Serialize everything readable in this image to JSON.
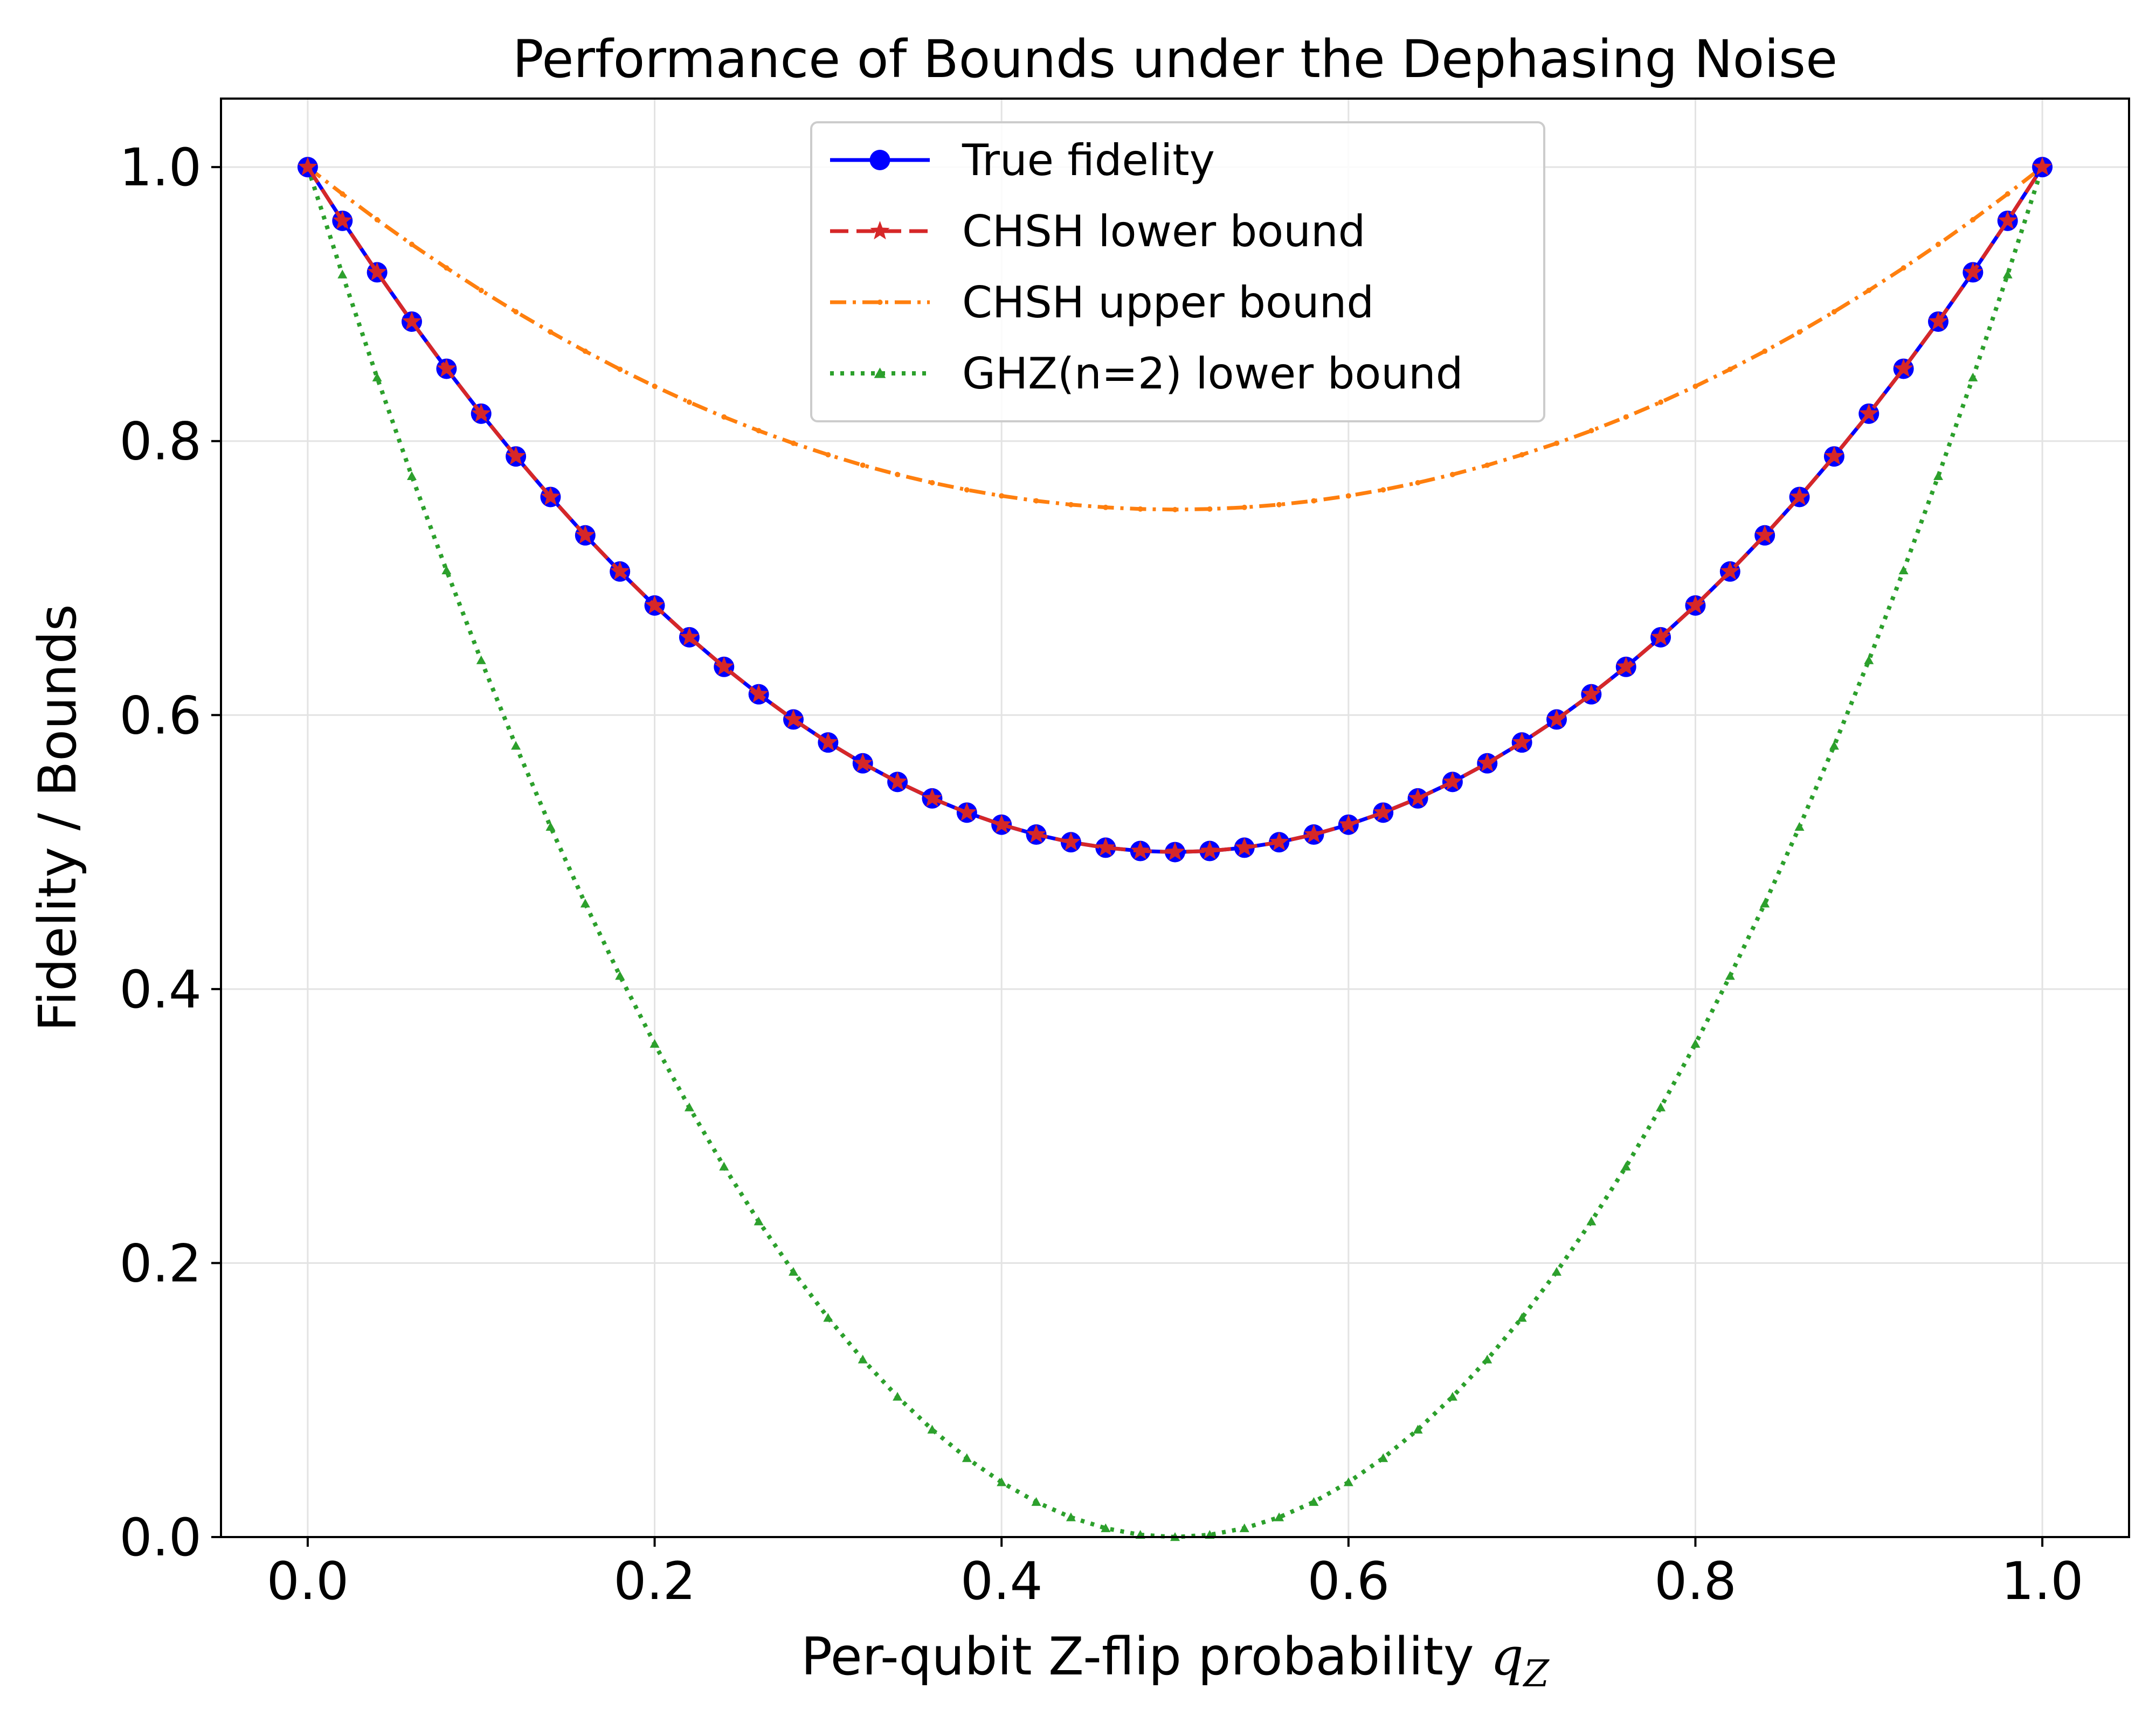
{
  "chart_data": {
    "type": "line",
    "title": "Performance of Bounds under the Dephasing Noise",
    "xlabel": "Per-qubit Z-flip probability ",
    "xlabel_symbol": "q",
    "xlabel_subscript": "Z",
    "ylabel": "Fidelity / Bounds",
    "xlim": [
      -0.05,
      1.05
    ],
    "ylim": [
      0.0,
      1.05
    ],
    "x_ticks": [
      "0.0",
      "0.2",
      "0.4",
      "0.6",
      "0.8",
      "1.0"
    ],
    "y_ticks": [
      "0.0",
      "0.2",
      "0.4",
      "0.6",
      "0.8",
      "1.0"
    ],
    "grid": true,
    "legend_position": "top-center",
    "x": [
      0.0,
      0.02,
      0.04,
      0.06,
      0.08,
      0.1,
      0.12,
      0.14,
      0.16,
      0.18,
      0.2,
      0.22,
      0.24,
      0.26,
      0.28,
      0.3,
      0.32,
      0.34,
      0.36,
      0.38,
      0.4,
      0.42,
      0.44,
      0.46,
      0.48,
      0.5,
      0.52,
      0.54,
      0.56,
      0.58,
      0.6,
      0.62,
      0.64,
      0.66,
      0.68,
      0.7,
      0.72,
      0.74,
      0.76,
      0.78,
      0.8,
      0.82,
      0.84,
      0.86,
      0.88,
      0.9,
      0.92,
      0.94,
      0.96,
      0.98,
      1.0
    ],
    "series": [
      {
        "name": "True fidelity",
        "color": "#0000ff",
        "line": "solid",
        "marker": "circle",
        "values": [
          1.0,
          0.9608,
          0.9232,
          0.8872,
          0.8528,
          0.82,
          0.7888,
          0.7592,
          0.7312,
          0.7048,
          0.68,
          0.6568,
          0.6352,
          0.6152,
          0.5968,
          0.58,
          0.5648,
          0.5512,
          0.5392,
          0.5288,
          0.52,
          0.5128,
          0.5072,
          0.5032,
          0.5008,
          0.5,
          0.5008,
          0.5032,
          0.5072,
          0.5128,
          0.52,
          0.5288,
          0.5392,
          0.5512,
          0.5648,
          0.58,
          0.5968,
          0.6152,
          0.6352,
          0.6568,
          0.68,
          0.7048,
          0.7312,
          0.7592,
          0.7888,
          0.82,
          0.8528,
          0.8872,
          0.9232,
          0.9608,
          1.0
        ]
      },
      {
        "name": "CHSH lower bound",
        "color": "#d62728",
        "line": "dashed",
        "marker": "star",
        "values": [
          1.0,
          0.9608,
          0.9232,
          0.8872,
          0.8528,
          0.82,
          0.7888,
          0.7592,
          0.7312,
          0.7048,
          0.68,
          0.6568,
          0.6352,
          0.6152,
          0.5968,
          0.58,
          0.5648,
          0.5512,
          0.5392,
          0.5288,
          0.52,
          0.5128,
          0.5072,
          0.5032,
          0.5008,
          0.5,
          0.5008,
          0.5032,
          0.5072,
          0.5128,
          0.52,
          0.5288,
          0.5392,
          0.5512,
          0.5648,
          0.58,
          0.5968,
          0.6152,
          0.6352,
          0.6568,
          0.68,
          0.7048,
          0.7312,
          0.7592,
          0.7888,
          0.82,
          0.8528,
          0.8872,
          0.9232,
          0.9608,
          1.0
        ]
      },
      {
        "name": "CHSH upper bound",
        "color": "#ff7f0e",
        "line": "dashdot",
        "marker": "point",
        "values": [
          1.0,
          0.9804,
          0.9616,
          0.9436,
          0.9264,
          0.91,
          0.8944,
          0.8796,
          0.8656,
          0.8524,
          0.84,
          0.8284,
          0.8176,
          0.8076,
          0.7984,
          0.79,
          0.7824,
          0.7756,
          0.7696,
          0.7644,
          0.76,
          0.7564,
          0.7536,
          0.7516,
          0.7504,
          0.75,
          0.7504,
          0.7516,
          0.7536,
          0.7564,
          0.76,
          0.7644,
          0.7696,
          0.7756,
          0.7824,
          0.79,
          0.7984,
          0.8076,
          0.8176,
          0.8284,
          0.84,
          0.8524,
          0.8656,
          0.8796,
          0.8944,
          0.91,
          0.9264,
          0.9436,
          0.9616,
          0.9804,
          1.0
        ]
      },
      {
        "name": "GHZ(n=2) lower bound",
        "color": "#2ca02c",
        "line": "dotted",
        "marker": "triangle",
        "values": [
          1.0,
          0.9216,
          0.8464,
          0.7744,
          0.7056,
          0.64,
          0.5776,
          0.5184,
          0.4624,
          0.4096,
          0.36,
          0.3136,
          0.2704,
          0.2304,
          0.1936,
          0.16,
          0.1296,
          0.1024,
          0.0784,
          0.0576,
          0.04,
          0.0256,
          0.0144,
          0.0064,
          0.0016,
          0.0,
          0.0016,
          0.0064,
          0.0144,
          0.0256,
          0.04,
          0.0576,
          0.0784,
          0.1024,
          0.1296,
          0.16,
          0.1936,
          0.2304,
          0.2704,
          0.3136,
          0.36,
          0.4096,
          0.4624,
          0.5184,
          0.5776,
          0.64,
          0.7056,
          0.7744,
          0.8464,
          0.9216,
          1.0
        ]
      }
    ]
  }
}
